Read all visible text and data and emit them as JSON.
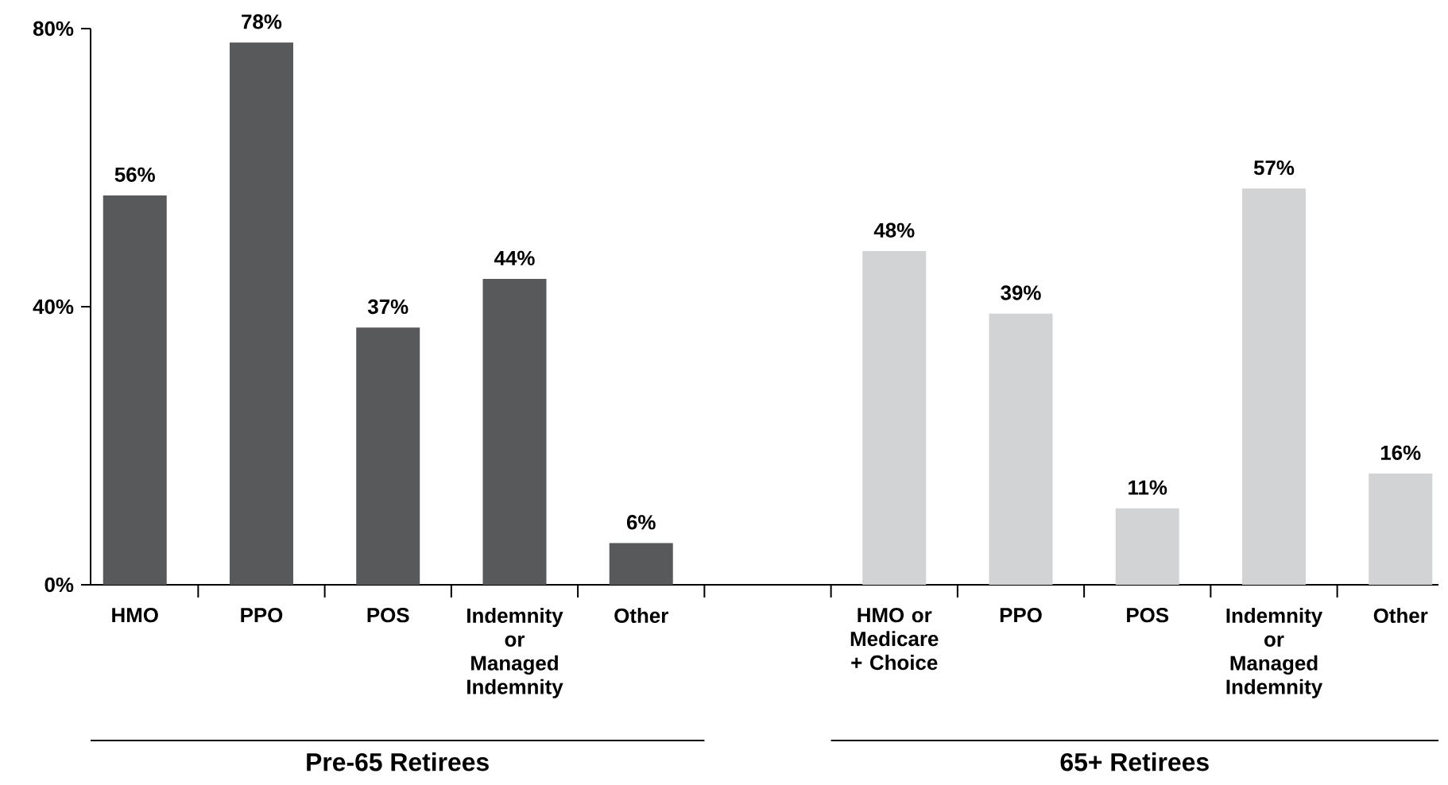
{
  "chart_data": {
    "type": "bar",
    "categories": [
      "HMO",
      "PPO",
      "POS",
      "Indemnity or Managed Indemnity",
      "Other",
      null,
      "HMO or Medicare + Choice",
      "PPO",
      "POS",
      "Indemnity or Managed Indemnity",
      "Other"
    ],
    "values": [
      56,
      78,
      37,
      44,
      6,
      null,
      48,
      39,
      11,
      57,
      16
    ],
    "colors": [
      "#58595b",
      "#58595b",
      "#58595b",
      "#58595b",
      "#58595b",
      null,
      "#d1d3d4",
      "#d1d3d4",
      "#d1d3d4",
      "#d1d3d4",
      "#d1d3d4"
    ],
    "value_labels": [
      "56%",
      "78%",
      "37%",
      "44%",
      "6%",
      null,
      "48%",
      "39%",
      "11%",
      "57%",
      "16%"
    ],
    "ylim": [
      0,
      80
    ],
    "yticks": [
      {
        "value": 0,
        "label": "0%"
      },
      {
        "value": 40,
        "label": "40%"
      },
      {
        "value": 80,
        "label": "80%"
      }
    ],
    "annotations": [
      "Pre-65 Retirees",
      "65+ Retirees"
    ],
    "grid": false
  }
}
